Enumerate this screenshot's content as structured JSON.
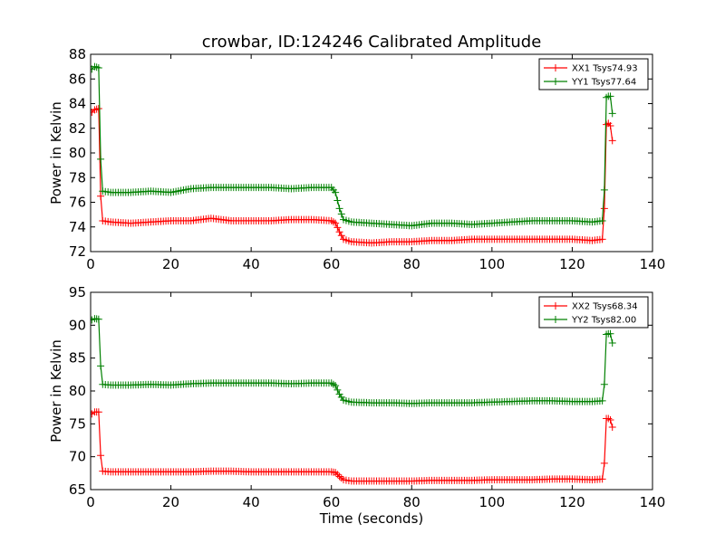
{
  "chart_data": [
    {
      "type": "line",
      "title": "crowbar, ID:124246 Calibrated Amplitude",
      "xlabel": "",
      "ylabel": "Power in Kelvin",
      "xlim": [
        0,
        140
      ],
      "ylim": [
        72,
        88
      ],
      "xticks": [
        0,
        20,
        40,
        60,
        80,
        100,
        120,
        140
      ],
      "yticks": [
        72,
        74,
        76,
        78,
        80,
        82,
        84,
        86,
        88
      ],
      "grid": false,
      "legend_position": "top-right",
      "series": [
        {
          "name": "XX1 Tsys74.93",
          "color": "#ff0000",
          "marker": "plus",
          "x": [
            0.3,
            1,
            2,
            2.5,
            3,
            5,
            10,
            15,
            20,
            25,
            30,
            35,
            40,
            45,
            50,
            55,
            60,
            61,
            62,
            63,
            65,
            70,
            75,
            80,
            85,
            90,
            95,
            100,
            105,
            110,
            115,
            120,
            125,
            127.5,
            128,
            128.5,
            129,
            129.5,
            130
          ],
          "y": [
            83.3,
            83.5,
            83.6,
            76.5,
            74.5,
            74.4,
            74.3,
            74.4,
            74.5,
            74.5,
            74.7,
            74.5,
            74.5,
            74.5,
            74.6,
            74.6,
            74.5,
            74.3,
            73.6,
            73.0,
            72.8,
            72.7,
            72.8,
            72.8,
            72.9,
            72.9,
            73.0,
            73.0,
            73.0,
            73.0,
            73.0,
            73.0,
            72.9,
            73.0,
            75.5,
            82.3,
            82.4,
            82.2,
            81.0
          ]
        },
        {
          "name": "YY1 Tsys77.64",
          "color": "#008000",
          "marker": "plus",
          "x": [
            0.3,
            1,
            2,
            2.5,
            3,
            5,
            10,
            15,
            20,
            25,
            30,
            35,
            40,
            45,
            50,
            55,
            60,
            61,
            62,
            63,
            65,
            70,
            75,
            80,
            85,
            90,
            95,
            100,
            105,
            110,
            115,
            120,
            125,
            127.5,
            128,
            128.5,
            129,
            129.5,
            130
          ],
          "y": [
            86.8,
            87.0,
            86.9,
            79.5,
            76.9,
            76.8,
            76.8,
            76.9,
            76.8,
            77.1,
            77.2,
            77.2,
            77.2,
            77.2,
            77.1,
            77.2,
            77.2,
            76.8,
            75.5,
            74.6,
            74.4,
            74.3,
            74.2,
            74.1,
            74.3,
            74.3,
            74.2,
            74.3,
            74.4,
            74.5,
            74.5,
            74.5,
            74.4,
            74.5,
            77.0,
            84.5,
            84.6,
            84.6,
            83.2
          ]
        }
      ]
    },
    {
      "type": "line",
      "title": "",
      "xlabel": "Time (seconds)",
      "ylabel": "Power in Kelvin",
      "xlim": [
        0,
        140
      ],
      "ylim": [
        65,
        95
      ],
      "xticks": [
        0,
        20,
        40,
        60,
        80,
        100,
        120,
        140
      ],
      "yticks": [
        65,
        70,
        75,
        80,
        85,
        90,
        95
      ],
      "grid": false,
      "legend_position": "top-right",
      "series": [
        {
          "name": "XX2 Tsys68.34",
          "color": "#ff0000",
          "marker": "plus",
          "x": [
            0.3,
            1,
            2,
            2.5,
            3,
            5,
            10,
            15,
            20,
            25,
            30,
            35,
            40,
            45,
            50,
            55,
            60,
            61,
            62,
            63,
            65,
            70,
            75,
            80,
            85,
            90,
            95,
            100,
            105,
            110,
            115,
            120,
            125,
            127.5,
            128,
            128.5,
            129,
            129.5,
            130
          ],
          "y": [
            76.5,
            76.8,
            76.8,
            70.2,
            67.8,
            67.7,
            67.7,
            67.7,
            67.7,
            67.7,
            67.8,
            67.8,
            67.7,
            67.7,
            67.7,
            67.7,
            67.7,
            67.6,
            67.0,
            66.5,
            66.3,
            66.3,
            66.3,
            66.3,
            66.4,
            66.4,
            66.4,
            66.5,
            66.5,
            66.5,
            66.6,
            66.6,
            66.5,
            66.6,
            69.0,
            75.8,
            75.8,
            75.6,
            74.5
          ]
        },
        {
          "name": "YY2 Tsys82.00",
          "color": "#008000",
          "marker": "plus",
          "x": [
            0.3,
            1,
            2,
            2.5,
            3,
            5,
            10,
            15,
            20,
            25,
            30,
            35,
            40,
            45,
            50,
            55,
            60,
            61,
            62,
            63,
            65,
            70,
            75,
            80,
            85,
            90,
            95,
            100,
            105,
            110,
            115,
            120,
            125,
            127.5,
            128,
            128.5,
            129,
            129.5,
            130
          ],
          "y": [
            90.8,
            91.0,
            90.9,
            83.8,
            81.0,
            80.9,
            80.9,
            81.0,
            80.9,
            81.1,
            81.2,
            81.2,
            81.2,
            81.2,
            81.1,
            81.2,
            81.2,
            80.8,
            79.5,
            78.6,
            78.3,
            78.2,
            78.2,
            78.1,
            78.2,
            78.2,
            78.2,
            78.3,
            78.4,
            78.5,
            78.5,
            78.4,
            78.4,
            78.5,
            81.0,
            88.6,
            88.7,
            88.7,
            87.3
          ]
        }
      ]
    }
  ]
}
